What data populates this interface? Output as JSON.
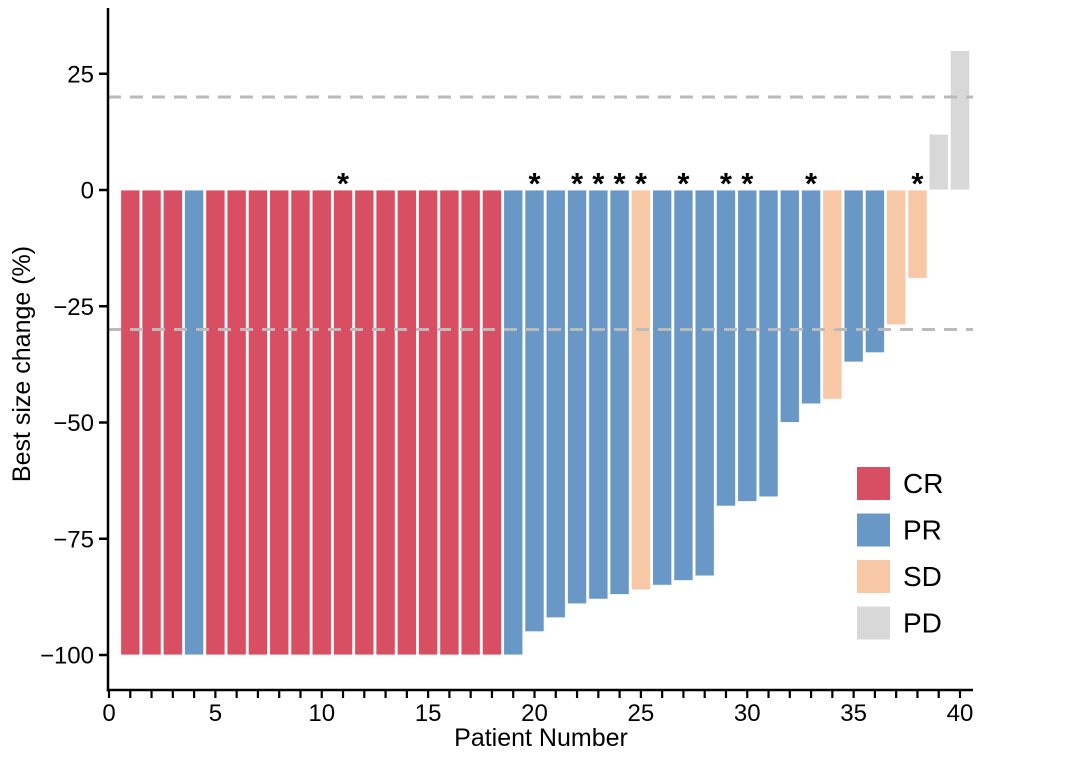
{
  "chart_data": {
    "type": "bar",
    "variant": "waterfall",
    "title": "",
    "xlabel": "Patient Number",
    "ylabel": "Best size change (%)",
    "x_axis": {
      "min": 0,
      "max": 40,
      "labeled_ticks": [
        0,
        5,
        10,
        15,
        20,
        25,
        30,
        35,
        40
      ],
      "minor_tick_step": 1
    },
    "y_axis": {
      "min": -100,
      "max": 30,
      "ticks": [
        25,
        0,
        -25,
        -50,
        -75,
        -100
      ],
      "tick_labels": [
        "25",
        "0",
        "−25",
        "−50",
        "−75",
        "−100"
      ]
    },
    "grid": false,
    "reference_lines": [
      {
        "y": 20,
        "style": "dashed",
        "color": "#BBBBBB"
      },
      {
        "y": -30,
        "style": "dashed",
        "color": "#BBBBBB"
      }
    ],
    "significance_marker": "*",
    "marked_patients": [
      11,
      20,
      22,
      23,
      24,
      25,
      27,
      29,
      30,
      33,
      38
    ],
    "legend": {
      "position": "right-lower",
      "entries": [
        {
          "label": "CR",
          "color": "#D84E63"
        },
        {
          "label": "PR",
          "color": "#6A98C6"
        },
        {
          "label": "SD",
          "color": "#F8C7A5"
        },
        {
          "label": "PD",
          "color": "#D8D8D8"
        }
      ]
    },
    "patients": [
      {
        "patient": 1,
        "value": -100,
        "response": "CR",
        "marked": false
      },
      {
        "patient": 2,
        "value": -100,
        "response": "CR",
        "marked": false
      },
      {
        "patient": 3,
        "value": -100,
        "response": "CR",
        "marked": false
      },
      {
        "patient": 4,
        "value": -100,
        "response": "PR",
        "marked": false
      },
      {
        "patient": 5,
        "value": -100,
        "response": "CR",
        "marked": false
      },
      {
        "patient": 6,
        "value": -100,
        "response": "CR",
        "marked": false
      },
      {
        "patient": 7,
        "value": -100,
        "response": "CR",
        "marked": false
      },
      {
        "patient": 8,
        "value": -100,
        "response": "CR",
        "marked": false
      },
      {
        "patient": 9,
        "value": -100,
        "response": "CR",
        "marked": false
      },
      {
        "patient": 10,
        "value": -100,
        "response": "CR",
        "marked": false
      },
      {
        "patient": 11,
        "value": -100,
        "response": "CR",
        "marked": true
      },
      {
        "patient": 12,
        "value": -100,
        "response": "CR",
        "marked": false
      },
      {
        "patient": 13,
        "value": -100,
        "response": "CR",
        "marked": false
      },
      {
        "patient": 14,
        "value": -100,
        "response": "CR",
        "marked": false
      },
      {
        "patient": 15,
        "value": -100,
        "response": "CR",
        "marked": false
      },
      {
        "patient": 16,
        "value": -100,
        "response": "CR",
        "marked": false
      },
      {
        "patient": 17,
        "value": -100,
        "response": "CR",
        "marked": false
      },
      {
        "patient": 18,
        "value": -100,
        "response": "CR",
        "marked": false
      },
      {
        "patient": 19,
        "value": -100,
        "response": "PR",
        "marked": false
      },
      {
        "patient": 20,
        "value": -95,
        "response": "PR",
        "marked": true
      },
      {
        "patient": 21,
        "value": -92,
        "response": "PR",
        "marked": false
      },
      {
        "patient": 22,
        "value": -89,
        "response": "PR",
        "marked": true
      },
      {
        "patient": 23,
        "value": -88,
        "response": "PR",
        "marked": true
      },
      {
        "patient": 24,
        "value": -87,
        "response": "PR",
        "marked": true
      },
      {
        "patient": 25,
        "value": -86,
        "response": "SD",
        "marked": true
      },
      {
        "patient": 26,
        "value": -85,
        "response": "PR",
        "marked": false
      },
      {
        "patient": 27,
        "value": -84,
        "response": "PR",
        "marked": true
      },
      {
        "patient": 28,
        "value": -83,
        "response": "PR",
        "marked": false
      },
      {
        "patient": 29,
        "value": -68,
        "response": "PR",
        "marked": true
      },
      {
        "patient": 30,
        "value": -67,
        "response": "PR",
        "marked": true
      },
      {
        "patient": 31,
        "value": -66,
        "response": "PR",
        "marked": false
      },
      {
        "patient": 32,
        "value": -50,
        "response": "PR",
        "marked": false
      },
      {
        "patient": 33,
        "value": -46,
        "response": "PR",
        "marked": true
      },
      {
        "patient": 34,
        "value": -45,
        "response": "SD",
        "marked": false
      },
      {
        "patient": 35,
        "value": -37,
        "response": "PR",
        "marked": false
      },
      {
        "patient": 36,
        "value": -35,
        "response": "PR",
        "marked": false
      },
      {
        "patient": 37,
        "value": -29,
        "response": "SD",
        "marked": false
      },
      {
        "patient": 38,
        "value": -19,
        "response": "SD",
        "marked": true
      },
      {
        "patient": 39,
        "value": 12,
        "response": "PD",
        "marked": false
      },
      {
        "patient": 40,
        "value": 30,
        "response": "PD",
        "marked": false
      }
    ]
  }
}
